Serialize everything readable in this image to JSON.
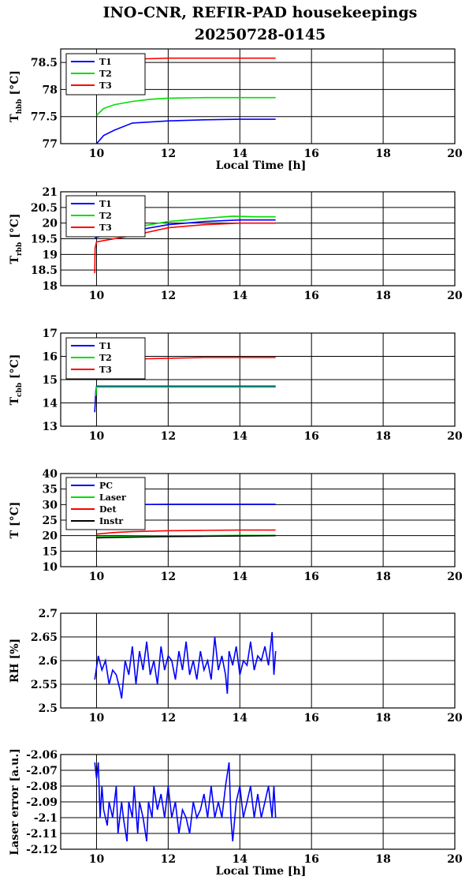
{
  "title_line1": "INO-CNR, REFIR-PAD housekeepings",
  "title_line2": "20250728-0145",
  "colors": {
    "blue": "#0000ff",
    "green": "#00dd00",
    "red": "#ff0000",
    "black": "#000000"
  },
  "chart_data": [
    {
      "type": "line",
      "ylabel": "T_hbb [°C]",
      "ylabel_main": "T",
      "ylabel_sub": "hbb",
      "ylabel_unit": " [°C]",
      "xlabel": "Local Time [h]",
      "xlim": [
        9,
        20
      ],
      "ylim": [
        77,
        78.75
      ],
      "xticks": [
        "10",
        "12",
        "14",
        "16",
        "18",
        "20"
      ],
      "yticks": [
        "77",
        "77.5",
        "78",
        "78.5"
      ],
      "legend": "top-left",
      "series": [
        {
          "name": "T1",
          "color": "blue",
          "x": [
            10,
            10.2,
            10.5,
            11,
            11.5,
            12,
            13,
            14,
            15
          ],
          "y": [
            77.0,
            77.15,
            77.25,
            77.38,
            77.4,
            77.42,
            77.44,
            77.45,
            77.45
          ]
        },
        {
          "name": "T2",
          "color": "green",
          "x": [
            10,
            10.2,
            10.5,
            11,
            11.5,
            12,
            13,
            14,
            15
          ],
          "y": [
            77.52,
            77.65,
            77.72,
            77.78,
            77.82,
            77.84,
            77.85,
            77.85,
            77.85
          ]
        },
        {
          "name": "T3",
          "color": "red",
          "x": [
            10.6,
            11,
            12,
            13,
            14,
            15
          ],
          "y": [
            78.52,
            78.56,
            78.58,
            78.58,
            78.58,
            78.58
          ]
        }
      ]
    },
    {
      "type": "line",
      "ylabel": "T_rbb [°C]",
      "ylabel_main": "T",
      "ylabel_sub": "rbb",
      "ylabel_unit": " [°C]",
      "xlabel": "",
      "xlim": [
        9,
        20
      ],
      "ylim": [
        18,
        21
      ],
      "xticks": [
        "10",
        "12",
        "14",
        "16",
        "18",
        "20"
      ],
      "yticks": [
        "18",
        "18.5",
        "19",
        "19.5",
        "20",
        "20.5",
        "21"
      ],
      "legend": "top-left",
      "series": [
        {
          "name": "T1",
          "color": "blue",
          "x": [
            9.95,
            10,
            10.5,
            11,
            12,
            12.5,
            13,
            14,
            15
          ],
          "y": [
            19.5,
            19.55,
            19.65,
            19.75,
            19.95,
            20.0,
            20.05,
            20.1,
            20.1
          ]
        },
        {
          "name": "T2",
          "color": "green",
          "x": [
            9.95,
            10,
            10.5,
            11,
            12,
            12.5,
            13,
            13.8,
            14.5,
            15
          ],
          "y": [
            19.6,
            19.65,
            19.75,
            19.85,
            20.05,
            20.1,
            20.15,
            20.22,
            20.2,
            20.2
          ]
        },
        {
          "name": "T3",
          "color": "red",
          "x": [
            9.95,
            9.96,
            10,
            10.5,
            11,
            12,
            12.5,
            13,
            14,
            15
          ],
          "y": [
            18.4,
            19.2,
            19.4,
            19.5,
            19.6,
            19.85,
            19.9,
            19.95,
            20.0,
            20.0
          ]
        }
      ]
    },
    {
      "type": "line",
      "ylabel": "T_cbb [°C]",
      "ylabel_main": "T",
      "ylabel_sub": "cbb",
      "ylabel_unit": " [°C]",
      "xlabel": "",
      "xlim": [
        9,
        20
      ],
      "ylim": [
        13,
        17
      ],
      "xticks": [
        "10",
        "12",
        "14",
        "16",
        "18",
        "20"
      ],
      "yticks": [
        "13",
        "14",
        "15",
        "16",
        "17"
      ],
      "legend": "top-left",
      "series": [
        {
          "name": "T1",
          "color": "blue",
          "x": [
            9.95,
            9.98,
            10,
            11,
            12,
            13,
            14,
            15
          ],
          "y": [
            13.6,
            14.5,
            14.72,
            14.72,
            14.72,
            14.72,
            14.72,
            14.72
          ]
        },
        {
          "name": "T2",
          "color": "green",
          "x": [
            9.98,
            10,
            11,
            12,
            13,
            14,
            15
          ],
          "y": [
            14.3,
            14.68,
            14.68,
            14.68,
            14.68,
            14.68,
            14.68
          ]
        },
        {
          "name": "T3",
          "color": "red",
          "x": [
            10,
            11,
            12,
            13,
            14,
            15
          ],
          "y": [
            15.85,
            15.88,
            15.92,
            15.95,
            15.95,
            15.95
          ]
        }
      ]
    },
    {
      "type": "line",
      "ylabel": "T [°C]",
      "ylabel_main": "T",
      "ylabel_sub": "",
      "ylabel_unit": " [°C]",
      "xlabel": "",
      "xlim": [
        9,
        20
      ],
      "ylim": [
        10,
        40
      ],
      "xticks": [
        "10",
        "12",
        "14",
        "16",
        "18",
        "20"
      ],
      "yticks": [
        "10",
        "15",
        "20",
        "25",
        "30",
        "35",
        "40"
      ],
      "legend": "top-left",
      "series": [
        {
          "name": "PC",
          "color": "blue",
          "x": [
            10,
            10.5,
            11,
            12,
            13,
            14,
            15
          ],
          "y": [
            29.5,
            29.8,
            30.0,
            30.1,
            30.1,
            30.1,
            30.1
          ]
        },
        {
          "name": "Laser",
          "color": "green",
          "x": [
            10,
            11,
            12,
            13,
            14,
            15
          ],
          "y": [
            19.6,
            19.8,
            19.9,
            20.0,
            20.1,
            20.1
          ]
        },
        {
          "name": "Det",
          "color": "red",
          "x": [
            10,
            10.5,
            11,
            12,
            13,
            14,
            15
          ],
          "y": [
            20.5,
            21.0,
            21.3,
            21.6,
            21.7,
            21.8,
            21.8
          ]
        },
        {
          "name": "Instr",
          "color": "black",
          "x": [
            10,
            11,
            12,
            13,
            14,
            15
          ],
          "y": [
            19.3,
            19.5,
            19.7,
            19.8,
            19.9,
            20.0
          ]
        }
      ]
    },
    {
      "type": "line",
      "ylabel": "RH [%]",
      "ylabel_main": "RH [%]",
      "ylabel_sub": "",
      "ylabel_unit": "",
      "xlabel": "",
      "xlim": [
        9,
        20
      ],
      "ylim": [
        2.5,
        2.7
      ],
      "xticks": [
        "10",
        "12",
        "14",
        "16",
        "18",
        "20"
      ],
      "yticks": [
        "2.5",
        "2.55",
        "2.6",
        "2.65",
        "2.7"
      ],
      "series": [
        {
          "name": "",
          "color": "blue",
          "x": [
            9.95,
            10.05,
            10.15,
            10.25,
            10.35,
            10.45,
            10.55,
            10.65,
            10.7,
            10.8,
            10.9,
            11.0,
            11.1,
            11.2,
            11.3,
            11.4,
            11.5,
            11.6,
            11.7,
            11.8,
            11.9,
            12.0,
            12.1,
            12.2,
            12.3,
            12.4,
            12.5,
            12.6,
            12.7,
            12.8,
            12.9,
            13.0,
            13.1,
            13.2,
            13.3,
            13.4,
            13.5,
            13.6,
            13.65,
            13.7,
            13.8,
            13.9,
            14.0,
            14.1,
            14.2,
            14.3,
            14.4,
            14.5,
            14.6,
            14.7,
            14.8,
            14.9,
            14.95,
            15.0
          ],
          "y": [
            2.56,
            2.61,
            2.58,
            2.6,
            2.55,
            2.58,
            2.57,
            2.54,
            2.52,
            2.6,
            2.57,
            2.63,
            2.55,
            2.62,
            2.58,
            2.64,
            2.57,
            2.6,
            2.55,
            2.63,
            2.58,
            2.61,
            2.6,
            2.56,
            2.62,
            2.58,
            2.64,
            2.57,
            2.6,
            2.56,
            2.62,
            2.58,
            2.6,
            2.56,
            2.65,
            2.58,
            2.61,
            2.57,
            2.53,
            2.62,
            2.59,
            2.63,
            2.57,
            2.6,
            2.59,
            2.64,
            2.58,
            2.61,
            2.6,
            2.63,
            2.59,
            2.66,
            2.57,
            2.62
          ]
        }
      ]
    },
    {
      "type": "line",
      "ylabel": "Laser error [a.u.]",
      "ylabel_main": "Laser error [a.u.]",
      "ylabel_sub": "",
      "ylabel_unit": "",
      "xlabel": "Local Time [h]",
      "xlim": [
        9,
        20
      ],
      "ylim": [
        -2.12,
        -2.06
      ],
      "xticks": [
        "10",
        "12",
        "14",
        "16",
        "18",
        "20"
      ],
      "yticks": [
        "-2.12",
        "-2.11",
        "-2.1",
        "-2.09",
        "-2.08",
        "-2.07",
        "-2.06"
      ],
      "series": [
        {
          "name": "",
          "color": "blue",
          "x": [
            9.95,
            10.0,
            10.05,
            10.1,
            10.15,
            10.2,
            10.3,
            10.35,
            10.45,
            10.55,
            10.6,
            10.7,
            10.75,
            10.85,
            10.9,
            11.0,
            11.05,
            11.15,
            11.2,
            11.3,
            11.4,
            11.45,
            11.55,
            11.6,
            11.7,
            11.8,
            11.9,
            12.0,
            12.1,
            12.2,
            12.3,
            12.4,
            12.5,
            12.6,
            12.7,
            12.8,
            12.9,
            13.0,
            13.1,
            13.2,
            13.3,
            13.4,
            13.5,
            13.6,
            13.7,
            13.75,
            13.8,
            13.9,
            14.0,
            14.1,
            14.2,
            14.3,
            14.4,
            14.5,
            14.6,
            14.7,
            14.8,
            14.9,
            14.95,
            15.0
          ],
          "y": [
            -2.065,
            -2.075,
            -2.065,
            -2.1,
            -2.08,
            -2.095,
            -2.105,
            -2.09,
            -2.1,
            -2.08,
            -2.11,
            -2.09,
            -2.1,
            -2.115,
            -2.09,
            -2.1,
            -2.08,
            -2.11,
            -2.09,
            -2.1,
            -2.115,
            -2.09,
            -2.1,
            -2.08,
            -2.095,
            -2.085,
            -2.1,
            -2.08,
            -2.1,
            -2.09,
            -2.11,
            -2.095,
            -2.1,
            -2.11,
            -2.09,
            -2.1,
            -2.095,
            -2.085,
            -2.1,
            -2.08,
            -2.1,
            -2.09,
            -2.1,
            -2.08,
            -2.065,
            -2.1,
            -2.115,
            -2.09,
            -2.08,
            -2.1,
            -2.09,
            -2.08,
            -2.1,
            -2.085,
            -2.1,
            -2.09,
            -2.08,
            -2.1,
            -2.08,
            -2.1
          ]
        }
      ]
    }
  ]
}
